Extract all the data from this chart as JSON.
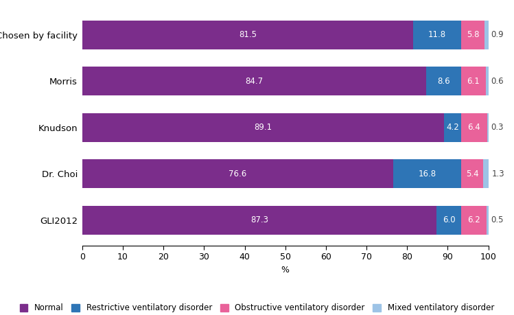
{
  "categories": [
    "GLI2012",
    "Dr. Choi",
    "Knudson",
    "Morris",
    "Chosen by facility"
  ],
  "normal": [
    87.3,
    76.6,
    89.1,
    84.7,
    81.5
  ],
  "restrictive": [
    6.0,
    16.8,
    4.2,
    8.6,
    11.8
  ],
  "obstructive": [
    6.2,
    5.4,
    6.4,
    6.1,
    5.8
  ],
  "mixed": [
    0.5,
    1.3,
    0.3,
    0.6,
    0.9
  ],
  "color_normal": "#7B2D8B",
  "color_restrictive": "#2E75B6",
  "color_obstructive": "#E9629A",
  "color_mixed": "#9DC3E6",
  "xlim": [
    0,
    100
  ],
  "xlabel": "%",
  "legend_labels": [
    "Normal",
    "Restrictive ventilatory disorder",
    "Obstructive ventilatory disorder",
    "Mixed ventilatory disorder"
  ],
  "bar_height": 0.62,
  "label_fontsize": 8.5,
  "tick_fontsize": 9,
  "legend_fontsize": 8.5,
  "ytick_fontsize": 9.5
}
